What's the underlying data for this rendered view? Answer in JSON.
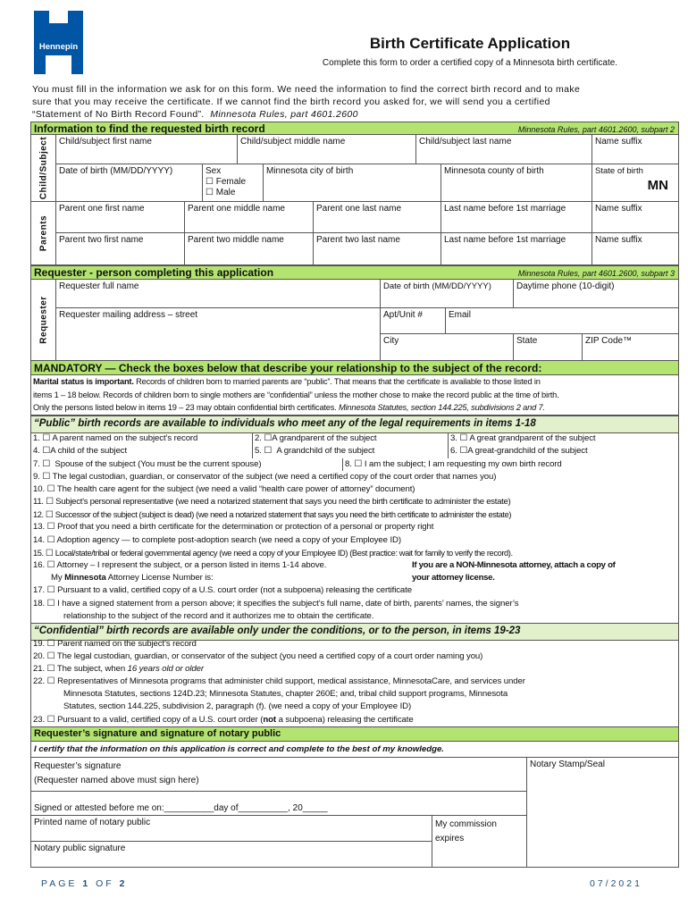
{
  "logo": {
    "text": "Hennepin",
    "color": "#0055a5"
  },
  "header": {
    "title": "Birth Certificate Application",
    "subtitle": "Complete this form to order a certified copy of a Minnesota birth certificate."
  },
  "intro": {
    "line1": "You must fill in the information we ask for on this form. We need the information to find the correct birth record and to make",
    "line2": "sure that you may receive the certificate. If we cannot find the birth record you asked for, we will send you a certified",
    "line3": "“Statement of No Birth Record Found”.",
    "line3_rule": "Minnesota Rules, part 4601.2600"
  },
  "section_info": {
    "title": "Information to find the requested birth record",
    "rule": "Minnesota Rules, part 4601.2600, subpart 2",
    "side_child": "Child/Subject",
    "side_parents": "Parents",
    "child_first": "Child/subject first name",
    "child_middle": "Child/subject middle name",
    "child_last": "Child/subject last name",
    "child_suffix": "Name suffix",
    "dob": "Date of birth (MM/DD/YYYY)",
    "sex": "Sex",
    "female": "Female",
    "male": "Male",
    "city": "Minnesota city of birth",
    "county": "Minnesota county of birth",
    "state_label": "State of birth",
    "state_value": "MN",
    "p1_first": "Parent one first name",
    "p1_middle": "Parent one middle name",
    "p1_last": "Parent one last name",
    "p1_before": "Last name before 1st marriage",
    "p1_suffix": "Name suffix",
    "p2_first": "Parent two first name",
    "p2_middle": "Parent two middle name",
    "p2_last": "Parent two last name",
    "p2_before": "Last name before 1st marriage",
    "p2_suffix": "Name suffix"
  },
  "section_requester": {
    "title": "Requester - person completing this application",
    "rule": "Minnesota Rules, part 4601.2600, subpart 3",
    "side": "Requester",
    "full_name": "Requester full name",
    "dob": "Date of birth (MM/DD/YYYY)",
    "phone": "Daytime phone (10-digit)",
    "address": "Requester mailing address – street",
    "apt": "Apt/Unit #",
    "email": "Email",
    "city": "City",
    "state": "State",
    "zip": "ZIP Code™"
  },
  "mandatory": {
    "title": "MANDATORY — Check the boxes below that describe your relationship to the subject of the record:",
    "bold": "Marital status is important.",
    "line1": " Records of children born to married parents are “public”. That means that the certificate is available to those listed in",
    "line2": "items 1 – 18 below. Records of children born to single mothers are “confidential” unless the mother chose to make the record public at the time of birth.",
    "line3": "Only the persons listed below in items 19 – 23 may obtain confidential birth certificates.",
    "line3_rule": "Minnesota Statutes, section 144.225, subdivisions 2 and 7."
  },
  "public": {
    "title": "“Public” birth records are available to individuals who meet any of the legal requirements in items 1-18",
    "items": [
      {
        "num": "1.",
        "label": "A parent named on the subject’s record"
      },
      {
        "num": "2.",
        "label": "A grandparent of the subject"
      },
      {
        "num": "3.",
        "label": "A great grandparent of the subject"
      },
      {
        "num": "4.",
        "label": "A child of the subject"
      },
      {
        "num": "5.",
        "label": "A grandchild of the subject"
      },
      {
        "num": "6.",
        "label": "A great-grandchild of the subject"
      },
      {
        "num": "7.",
        "label": "Spouse of the subject (You must be the current spouse)"
      },
      {
        "num": "8.",
        "label": "I am the subject; I am requesting my own birth record"
      },
      {
        "num": "9.",
        "label": "The legal custodian, guardian, or conservator of the subject (we need a certified copy of the court order that names you)"
      },
      {
        "num": "10.",
        "label": "The health care agent for the subject (we need a valid “health care power of attorney” document)"
      },
      {
        "num": "11.",
        "label": "Subject’s personal representative (we need a notarized statement that says you need the birth certificate to administer the estate)"
      },
      {
        "num": "12.",
        "label": "Successor of the subject (subject is dead) (we need a notarized statement that says you need the birth certificate to administer the estate)"
      },
      {
        "num": "13.",
        "label": "Proof that you need a birth certificate for the determination or protection of a personal or property right"
      },
      {
        "num": "14.",
        "label": "Adoption agency — to complete post-adoption search (we need a copy of your Employee ID)"
      },
      {
        "num": "15.",
        "label": "Local/state/tribal or federal governmental agency (we need a copy of your Employee ID) (Best practice: wait for family to verify the record)."
      },
      {
        "num": "16.",
        "label": "Attorney – I represent the subject, or a person listed in items 1-14 above.",
        "line2_a": "My ",
        "line2_b": "Minnesota",
        "line2_c": " Attorney License Number is:",
        "note1": "If you are a NON-Minnesota attorney, attach a copy of",
        "note2": "your attorney license."
      },
      {
        "num": "17.",
        "label": "Pursuant to a valid, certified copy of a U.S. court order (not a subpoena) releasing the certificate"
      },
      {
        "num": "18.",
        "label": "I have a signed statement from a person above; it specifies the subject’s full name, date of birth, parents’ names, the signer’s",
        "line2": "relationship to the subject of the record and it authorizes me to obtain the certificate."
      }
    ]
  },
  "confidential": {
    "title": "“Confidential” birth records are available only under the conditions, or to the person, in items 19-23",
    "items": [
      {
        "num": "19.",
        "label": "Parent named on the subject’s record"
      },
      {
        "num": "20.",
        "label": "The legal custodian, guardian, or conservator of the subject (you need a certified copy of a court order naming you)"
      },
      {
        "num": "21.",
        "label": "The subject, when ",
        "italic": "16 years old or older"
      },
      {
        "num": "22.",
        "label": "Representatives of Minnesota programs that administer child support, medical assistance, MinnesotaCare, and services under",
        "line2": "Minnesota Statutes, sections 124D.23; Minnesota Statutes, chapter 260E; and, tribal child support programs, Minnesota",
        "line3": "Statutes, section 144.225, subdivision 2, paragraph (f). (we need a copy of your Employee ID)"
      },
      {
        "num": "23.",
        "label": "Pursuant to a valid, certified copy of a U.S. court order (",
        "bold": "not",
        "label_end": " a subpoena) releasing the certificate"
      }
    ]
  },
  "signature": {
    "title": "Requester’s signature and signature of notary public",
    "certify": "I certify that the information on this application is correct and complete to the best of my knowledge.",
    "req_sig": "Requester’s signature",
    "req_sig_note": "(Requester named above must sign here)",
    "stamp": "Notary Stamp/Seal",
    "signed_before": "Signed or attested before me on:__________day of__________, 20_____",
    "printed_name": "Printed name of notary public",
    "commission1": "My commission",
    "commission2": "expires",
    "notary_sig": "Notary public signature"
  },
  "footer": {
    "page_prefix": "PAGE ",
    "page_num": "1",
    "page_of": " OF ",
    "page_total": "2",
    "date": "07/2021",
    "color": "#1f4e79"
  }
}
